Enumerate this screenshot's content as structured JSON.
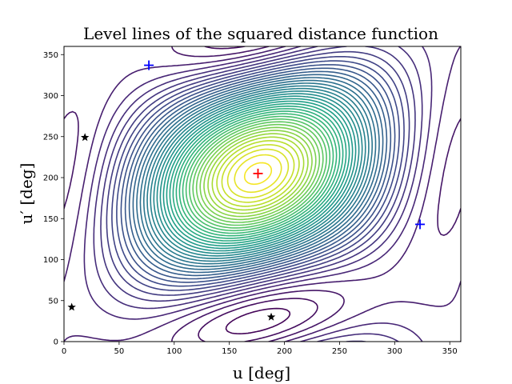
{
  "chart_data": {
    "type": "contour",
    "title": "Level lines of the squared distance function",
    "xlabel": "u [deg]",
    "ylabel": "u′ [deg]",
    "xlim": [
      0,
      360
    ],
    "ylim": [
      0,
      360
    ],
    "xticks": [
      "0",
      "50",
      "100",
      "150",
      "200",
      "250",
      "300",
      "350"
    ],
    "yticks": [
      "0",
      "50",
      "100",
      "150",
      "200",
      "250",
      "300",
      "350"
    ],
    "grid": false,
    "colormap": "viridis",
    "levels": {
      "min": 0,
      "max": 1,
      "count": 42
    },
    "markers": [
      {
        "kind": "max",
        "symbol": "+",
        "color": "#ff0000",
        "u": 176,
        "up": 205
      },
      {
        "kind": "min",
        "symbol": "+",
        "color": "#0000ff",
        "u": 77,
        "up": 337
      },
      {
        "kind": "min",
        "symbol": "+",
        "color": "#0000ff",
        "u": 323,
        "up": 143
      },
      {
        "kind": "saddle",
        "symbol": "★",
        "color": "#000000",
        "u": 19,
        "up": 249
      },
      {
        "kind": "saddle",
        "symbol": "★",
        "color": "#000000",
        "u": 7,
        "up": 42
      },
      {
        "kind": "saddle",
        "symbol": "★",
        "color": "#000000",
        "u": 188,
        "up": 30
      }
    ]
  }
}
